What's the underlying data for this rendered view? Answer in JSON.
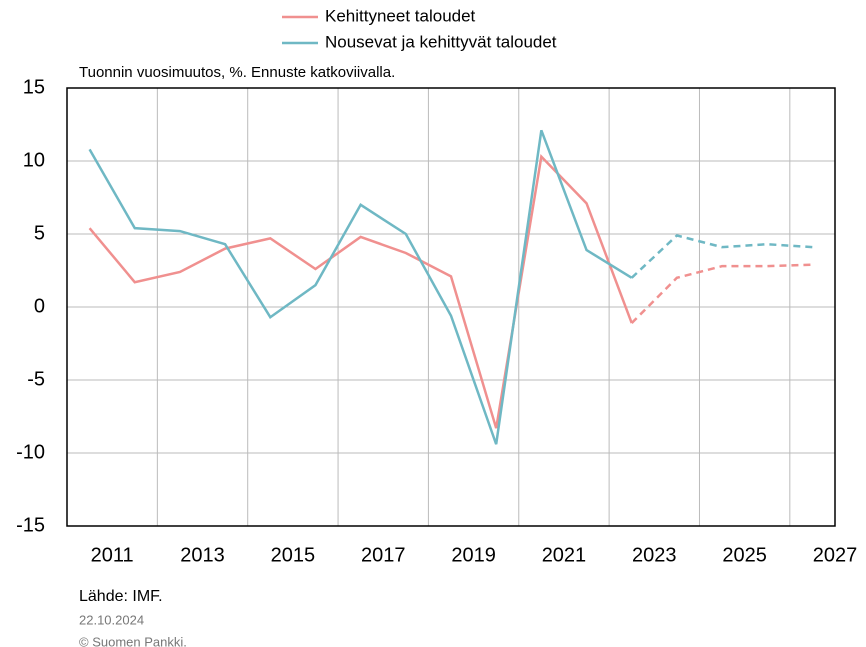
{
  "chart_data": {
    "type": "line",
    "subtitle": "Tuonnin vuosimuutos, %. Ennuste katkoviivalla.",
    "x": [
      2011,
      2012,
      2013,
      2014,
      2015,
      2016,
      2017,
      2018,
      2019,
      2020,
      2021,
      2022,
      2023,
      2024,
      2025,
      2026,
      2027
    ],
    "series": [
      {
        "name": "Kehittyneet taloudet",
        "color": "#f0908f",
        "values": [
          5.4,
          1.7,
          2.4,
          4.0,
          4.7,
          2.6,
          4.8,
          3.7,
          2.1,
          -8.3,
          10.3,
          7.1,
          -1.1,
          2.0,
          2.8,
          2.8,
          2.9
        ]
      },
      {
        "name": "Nousevat ja kehittyvät taloudet",
        "color": "#6fb8c4",
        "values": [
          10.8,
          5.4,
          5.2,
          4.3,
          -0.7,
          1.5,
          7.0,
          5.0,
          -0.6,
          -9.4,
          12.1,
          3.9,
          2.0,
          4.9,
          4.1,
          4.3,
          4.1
        ]
      }
    ],
    "dashed_from": 2023,
    "xlim": [
      2010.5,
      2027.5
    ],
    "xticks": [
      2011,
      2013,
      2015,
      2017,
      2019,
      2021,
      2023,
      2025,
      2027
    ],
    "ylim": [
      -15,
      15
    ],
    "yticks": [
      -15,
      -10,
      -5,
      0,
      5,
      10,
      15
    ],
    "grid": true
  },
  "footer": {
    "source": "Lähde: IMF.",
    "date": "22.10.2024",
    "copyright": "© Suomen Pankki."
  }
}
